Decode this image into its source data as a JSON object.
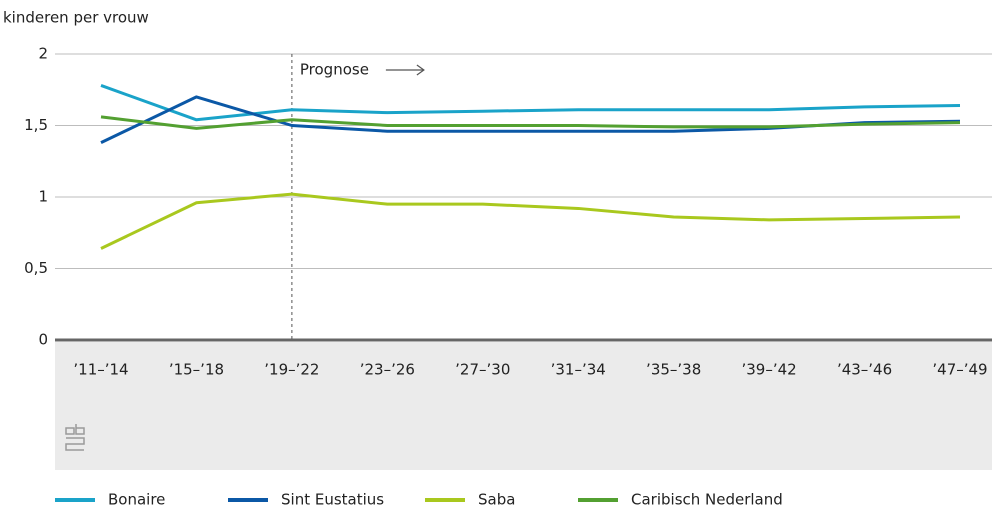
{
  "chart_data": {
    "type": "line",
    "y_axis_label": "kinderen per vrouw",
    "annotation": "Prognose",
    "categories": [
      "’11–’14",
      "’15–’18",
      "’19–’22",
      "’23–’26",
      "’27–’30",
      "’31–’34",
      "’35–’38",
      "’39–’42",
      "’43–’46",
      "’47–’49"
    ],
    "series": [
      {
        "name": "Bonaire",
        "color": "#1aa3c9",
        "values": [
          1.78,
          1.54,
          1.61,
          1.59,
          1.6,
          1.61,
          1.61,
          1.61,
          1.63,
          1.64
        ]
      },
      {
        "name": "Sint Eustatius",
        "color": "#0b58a6",
        "values": [
          1.38,
          1.7,
          1.5,
          1.46,
          1.46,
          1.46,
          1.46,
          1.48,
          1.52,
          1.53
        ]
      },
      {
        "name": "Saba",
        "color": "#a9c81e",
        "values": [
          0.64,
          0.96,
          1.02,
          0.95,
          0.95,
          0.92,
          0.86,
          0.84,
          0.85,
          0.86
        ]
      },
      {
        "name": "Caribisch Nederland",
        "color": "#53a031",
        "values": [
          1.56,
          1.48,
          1.54,
          1.5,
          1.5,
          1.5,
          1.49,
          1.49,
          1.51,
          1.52
        ]
      }
    ],
    "ylim": [
      0,
      2
    ],
    "yticks": [
      0,
      {
        "value": 0.5,
        "label": "0,5"
      },
      1,
      {
        "value": 1.5,
        "label": "1,5"
      },
      2
    ],
    "grid": true
  }
}
